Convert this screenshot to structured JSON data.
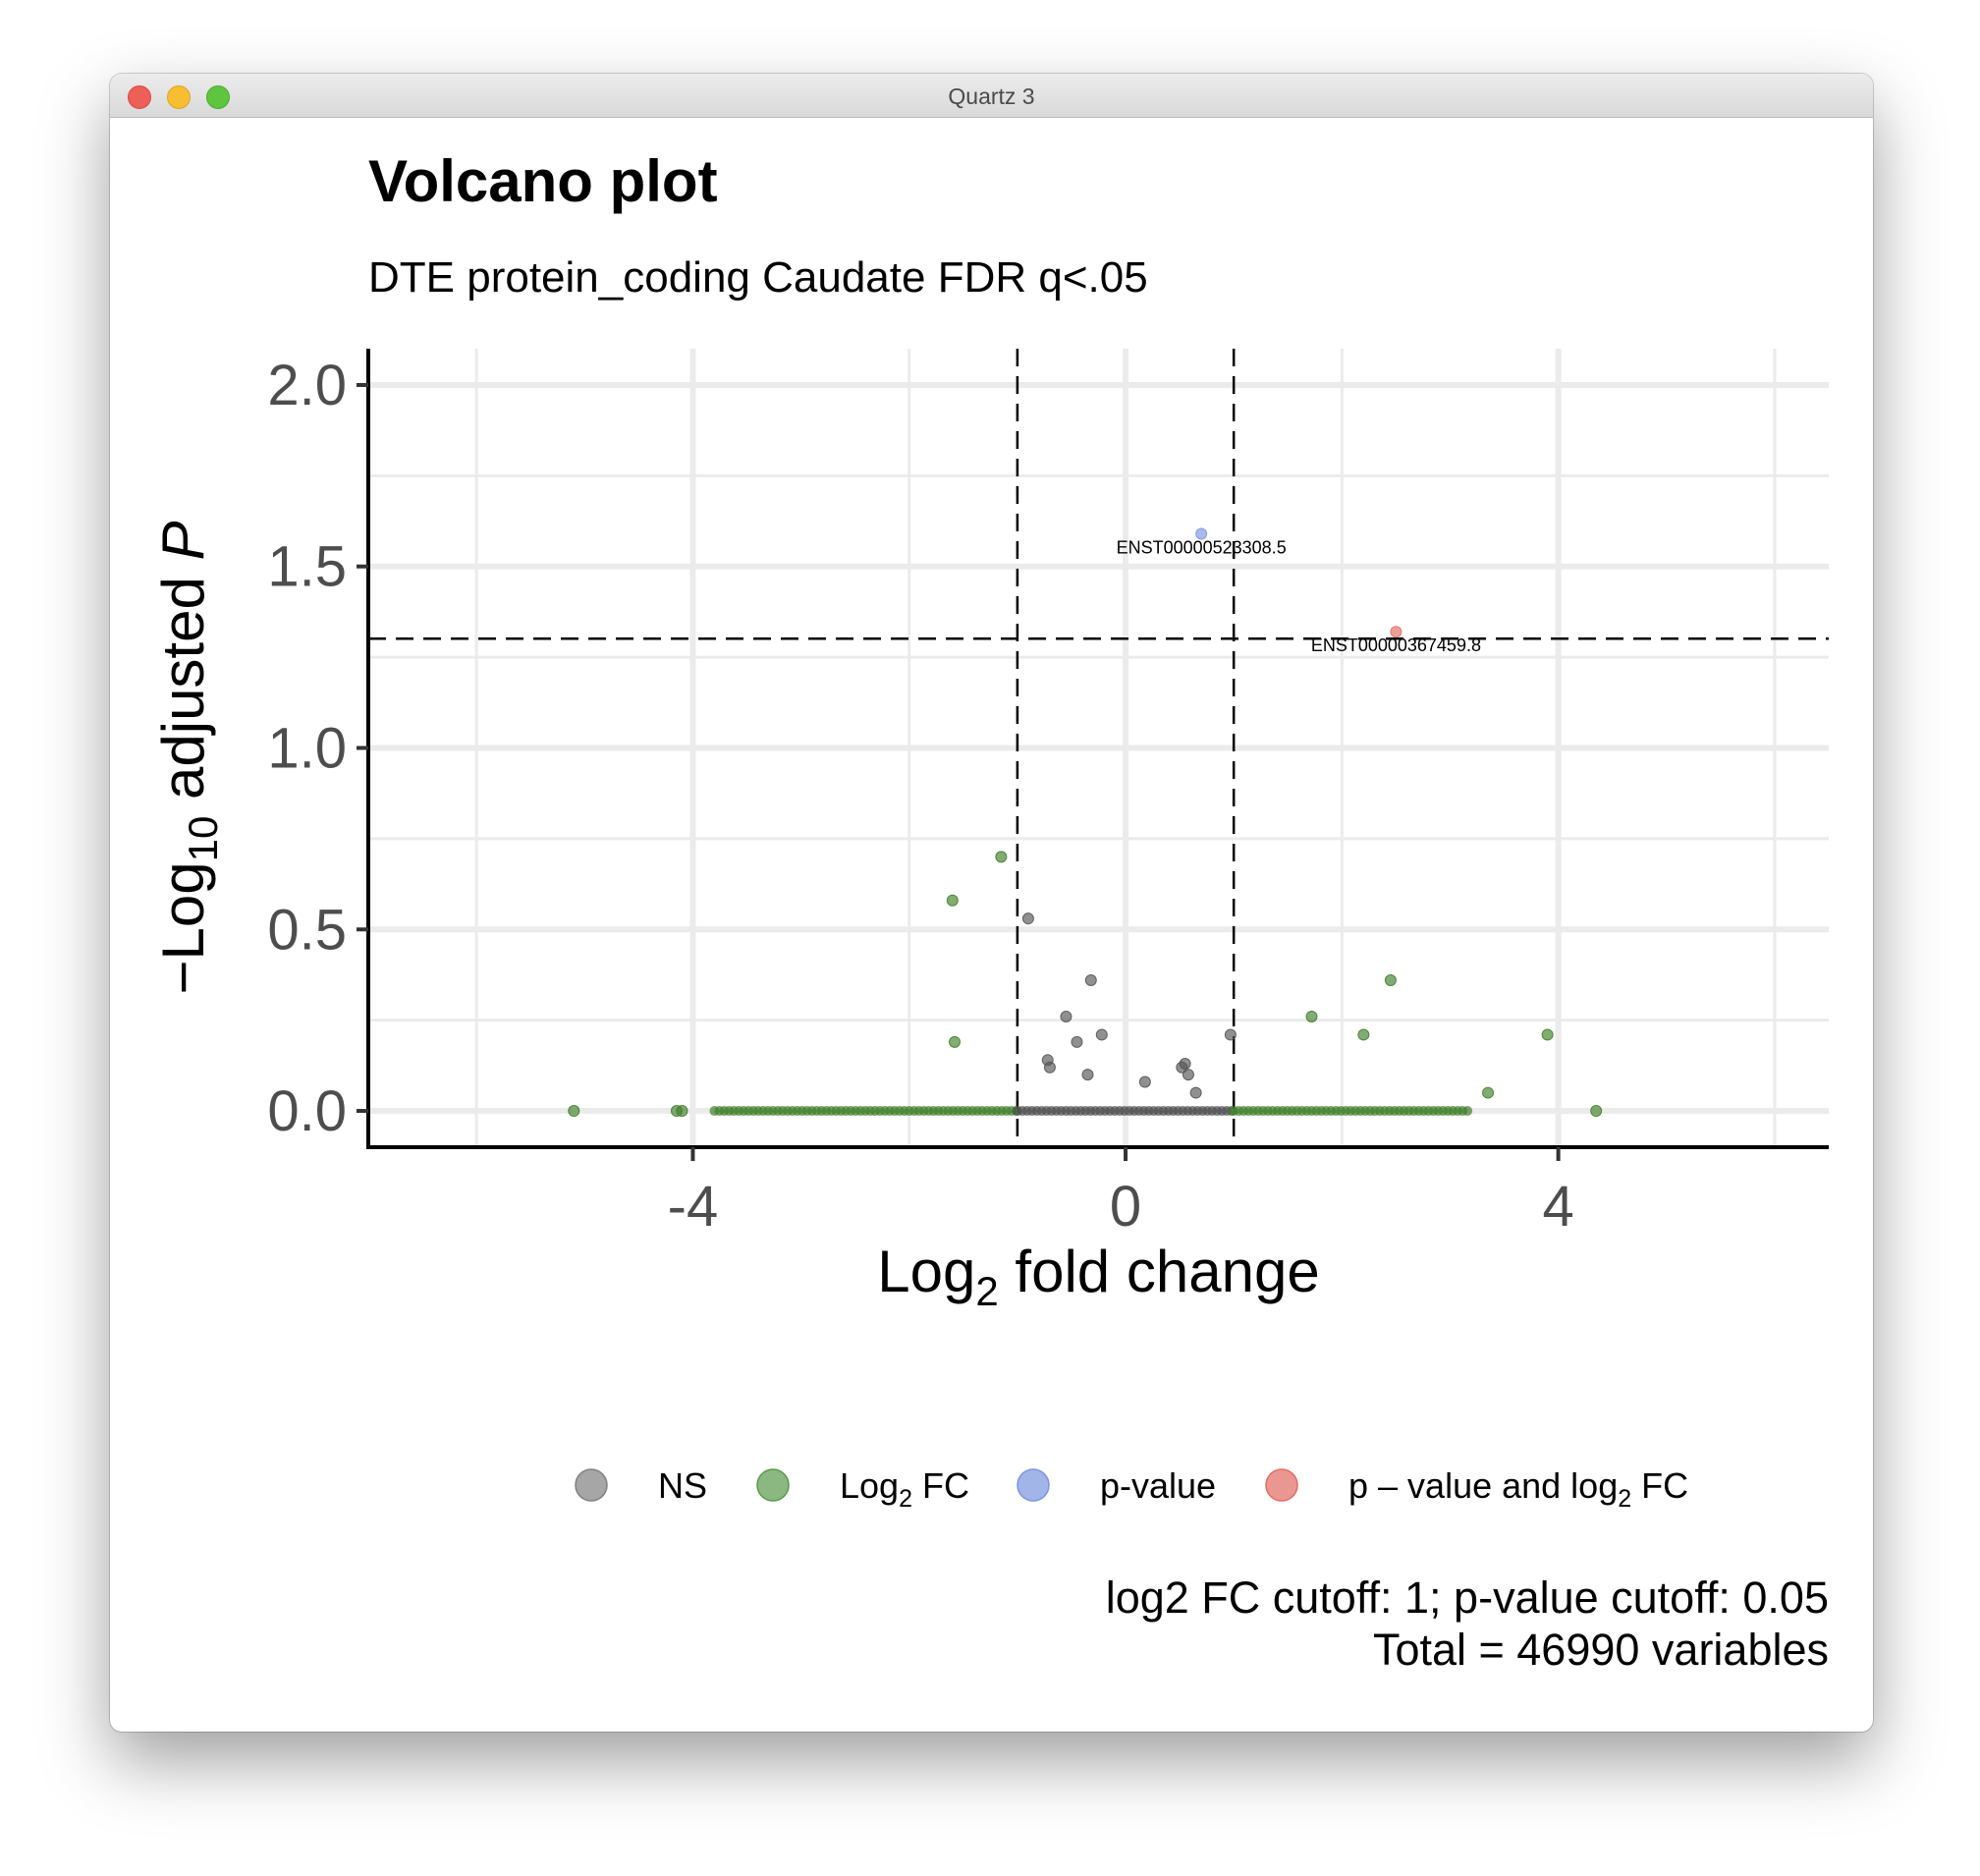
{
  "window": {
    "title": "Quartz 3",
    "controls": [
      "close",
      "minimize",
      "zoom"
    ]
  },
  "chart_data": {
    "type": "scatter",
    "title": "Volcano plot",
    "subtitle": "DTE protein_coding Caudate FDR q<.05",
    "xlabel": {
      "main": "Log",
      "sub": "2",
      "rest": " fold change"
    },
    "ylabel": {
      "pre": "−Log",
      "sub": "10",
      "mid": " adjusted ",
      "italic": "P"
    },
    "xlim": [
      -7,
      6.5
    ],
    "ylim": [
      -0.1,
      2.1
    ],
    "x_ticks": [
      -4,
      0,
      4
    ],
    "x_tick_labels": [
      "-4",
      "0",
      "4"
    ],
    "y_ticks": [
      0,
      0.5,
      1.0,
      1.5,
      2.0
    ],
    "y_tick_labels": [
      "0.0",
      "0.5",
      "1.0",
      "1.5",
      "2.0"
    ],
    "grid": true,
    "fc_cutoff": 1,
    "p_cutoff": 0.05,
    "p_cutoff_line_y": 1.301,
    "legend_position": "bottom",
    "legend": [
      {
        "key": "NS",
        "parts": [
          {
            "t": "NS"
          }
        ],
        "color": "#808080"
      },
      {
        "key": "Log2 FC",
        "parts": [
          {
            "t": "Log"
          },
          {
            "t": "2",
            "sub": true
          },
          {
            "t": " FC"
          }
        ],
        "color": "#5a9a4a"
      },
      {
        "key": "p-value",
        "parts": [
          {
            "t": "p-value"
          }
        ],
        "color": "#7b95e0"
      },
      {
        "key": "p - value and log2 FC",
        "parts": [
          {
            "t": "p – value and log"
          },
          {
            "t": "2",
            "sub": true
          },
          {
            "t": " FC"
          }
        ],
        "color": "#e36b63"
      }
    ],
    "caption": [
      "log2 FC cutoff: 1; p-value cutoff: 0.05",
      "Total = 46990 variables"
    ],
    "series": [
      {
        "name": "NS",
        "color": "#555555",
        "x": [
          -0.9,
          -0.72,
          -0.7,
          -0.55,
          -0.45,
          -0.35,
          -0.32,
          -0.22,
          0.18,
          0.52,
          0.55,
          0.58,
          0.65,
          0.97
        ],
        "y": [
          0.53,
          0.14,
          0.12,
          0.26,
          0.19,
          0.1,
          0.36,
          0.21,
          0.08,
          0.12,
          0.13,
          0.1,
          0.05,
          0.21
        ]
      },
      {
        "name": "Log2 FC",
        "color": "#3f7f2a",
        "x": [
          -5.1,
          -4.15,
          -4.1,
          -1.6,
          -1.58,
          -1.15,
          1.72,
          2.2,
          2.45,
          3.35,
          3.9,
          4.35
        ],
        "y": [
          0.0,
          0.0,
          0.0,
          0.58,
          0.19,
          0.7,
          0.26,
          0.21,
          0.36,
          0.05,
          0.21,
          0.0
        ]
      },
      {
        "name": "p-value",
        "color": "#7b95e0",
        "x": [
          0.7
        ],
        "y": [
          1.59
        ],
        "labels": [
          "ENST00000523308.5"
        ]
      },
      {
        "name": "p - value and log2 FC",
        "color": "#e36b63",
        "x": [
          2.5
        ],
        "y": [
          1.32
        ],
        "labels": [
          "ENST00000367459.8"
        ]
      }
    ],
    "dense_bands": [
      {
        "name": "Log2 FC",
        "color": "#3f7f2a",
        "x_from": -3.8,
        "x_to": -1.0,
        "y": 0.0
      },
      {
        "name": "NS",
        "color": "#4d4d4d",
        "x_from": -1.0,
        "x_to": 1.0,
        "y": 0.0
      },
      {
        "name": "Log2 FC",
        "color": "#3f7f2a",
        "x_from": 1.0,
        "x_to": 3.2,
        "y": 0.0
      }
    ]
  }
}
